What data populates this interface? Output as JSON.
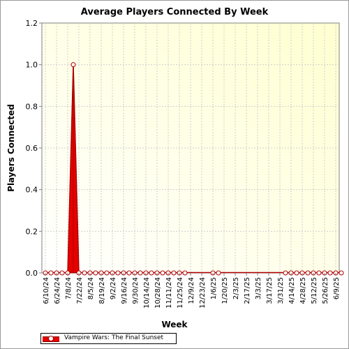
{
  "chart_data": {
    "type": "area",
    "title": "Average Players Connected By Week",
    "xlabel": "Week",
    "ylabel": "Players Connected",
    "ylim": [
      0,
      1.2
    ],
    "yticks": [
      "0.0",
      "0.2",
      "0.4",
      "0.6",
      "0.8",
      "1.0",
      "1.2"
    ],
    "xtick_labels": [
      "6/10/24",
      "6/24/24",
      "7/8/24",
      "7/22/24",
      "8/5/24",
      "8/19/24",
      "9/2/24",
      "9/16/24",
      "9/30/24",
      "10/14/24",
      "10/28/24",
      "11/11/24",
      "11/25/24",
      "12/9/24",
      "12/23/24",
      "1/6/25",
      "1/20/25",
      "2/3/25",
      "2/17/25",
      "3/3/25",
      "3/17/25",
      "3/31/25",
      "4/14/25",
      "4/28/25",
      "5/12/25",
      "5/26/25",
      "6/9/25"
    ],
    "grid": true,
    "legend_position": "bottom-left",
    "colors": {
      "series": "#e60000",
      "series_dark": "#b00000",
      "plot_bg": "#ffffe8",
      "grid": "#cfcfcf"
    },
    "series": [
      {
        "name": "Vampire Wars: The Final Sunset",
        "x": [
          "6/10/24",
          "6/17/24",
          "6/24/24",
          "7/1/24",
          "7/8/24",
          "7/15/24",
          "7/22/24",
          "7/29/24",
          "8/5/24",
          "8/12/24",
          "8/19/24",
          "8/26/24",
          "9/2/24",
          "9/9/24",
          "9/16/24",
          "9/23/24",
          "9/30/24",
          "10/7/24",
          "10/14/24",
          "10/21/24",
          "10/28/24",
          "11/4/24",
          "11/11/24",
          "11/18/24",
          "11/25/24",
          "12/2/24",
          "1/6/25",
          "1/13/25",
          "4/7/25",
          "4/14/25",
          "4/21/25",
          "4/28/25",
          "5/5/25",
          "5/12/25",
          "5/19/25",
          "5/26/25",
          "6/2/25",
          "6/9/25",
          "6/16/25"
        ],
        "values": [
          0,
          0,
          0,
          0,
          0,
          1.0,
          0,
          0,
          0,
          0,
          0,
          0,
          0,
          0,
          0,
          0,
          0,
          0,
          0,
          0,
          0,
          0,
          0,
          0,
          0,
          0,
          0,
          0,
          0,
          0,
          0,
          0,
          0,
          0,
          0,
          0,
          0,
          0,
          0
        ]
      }
    ]
  }
}
